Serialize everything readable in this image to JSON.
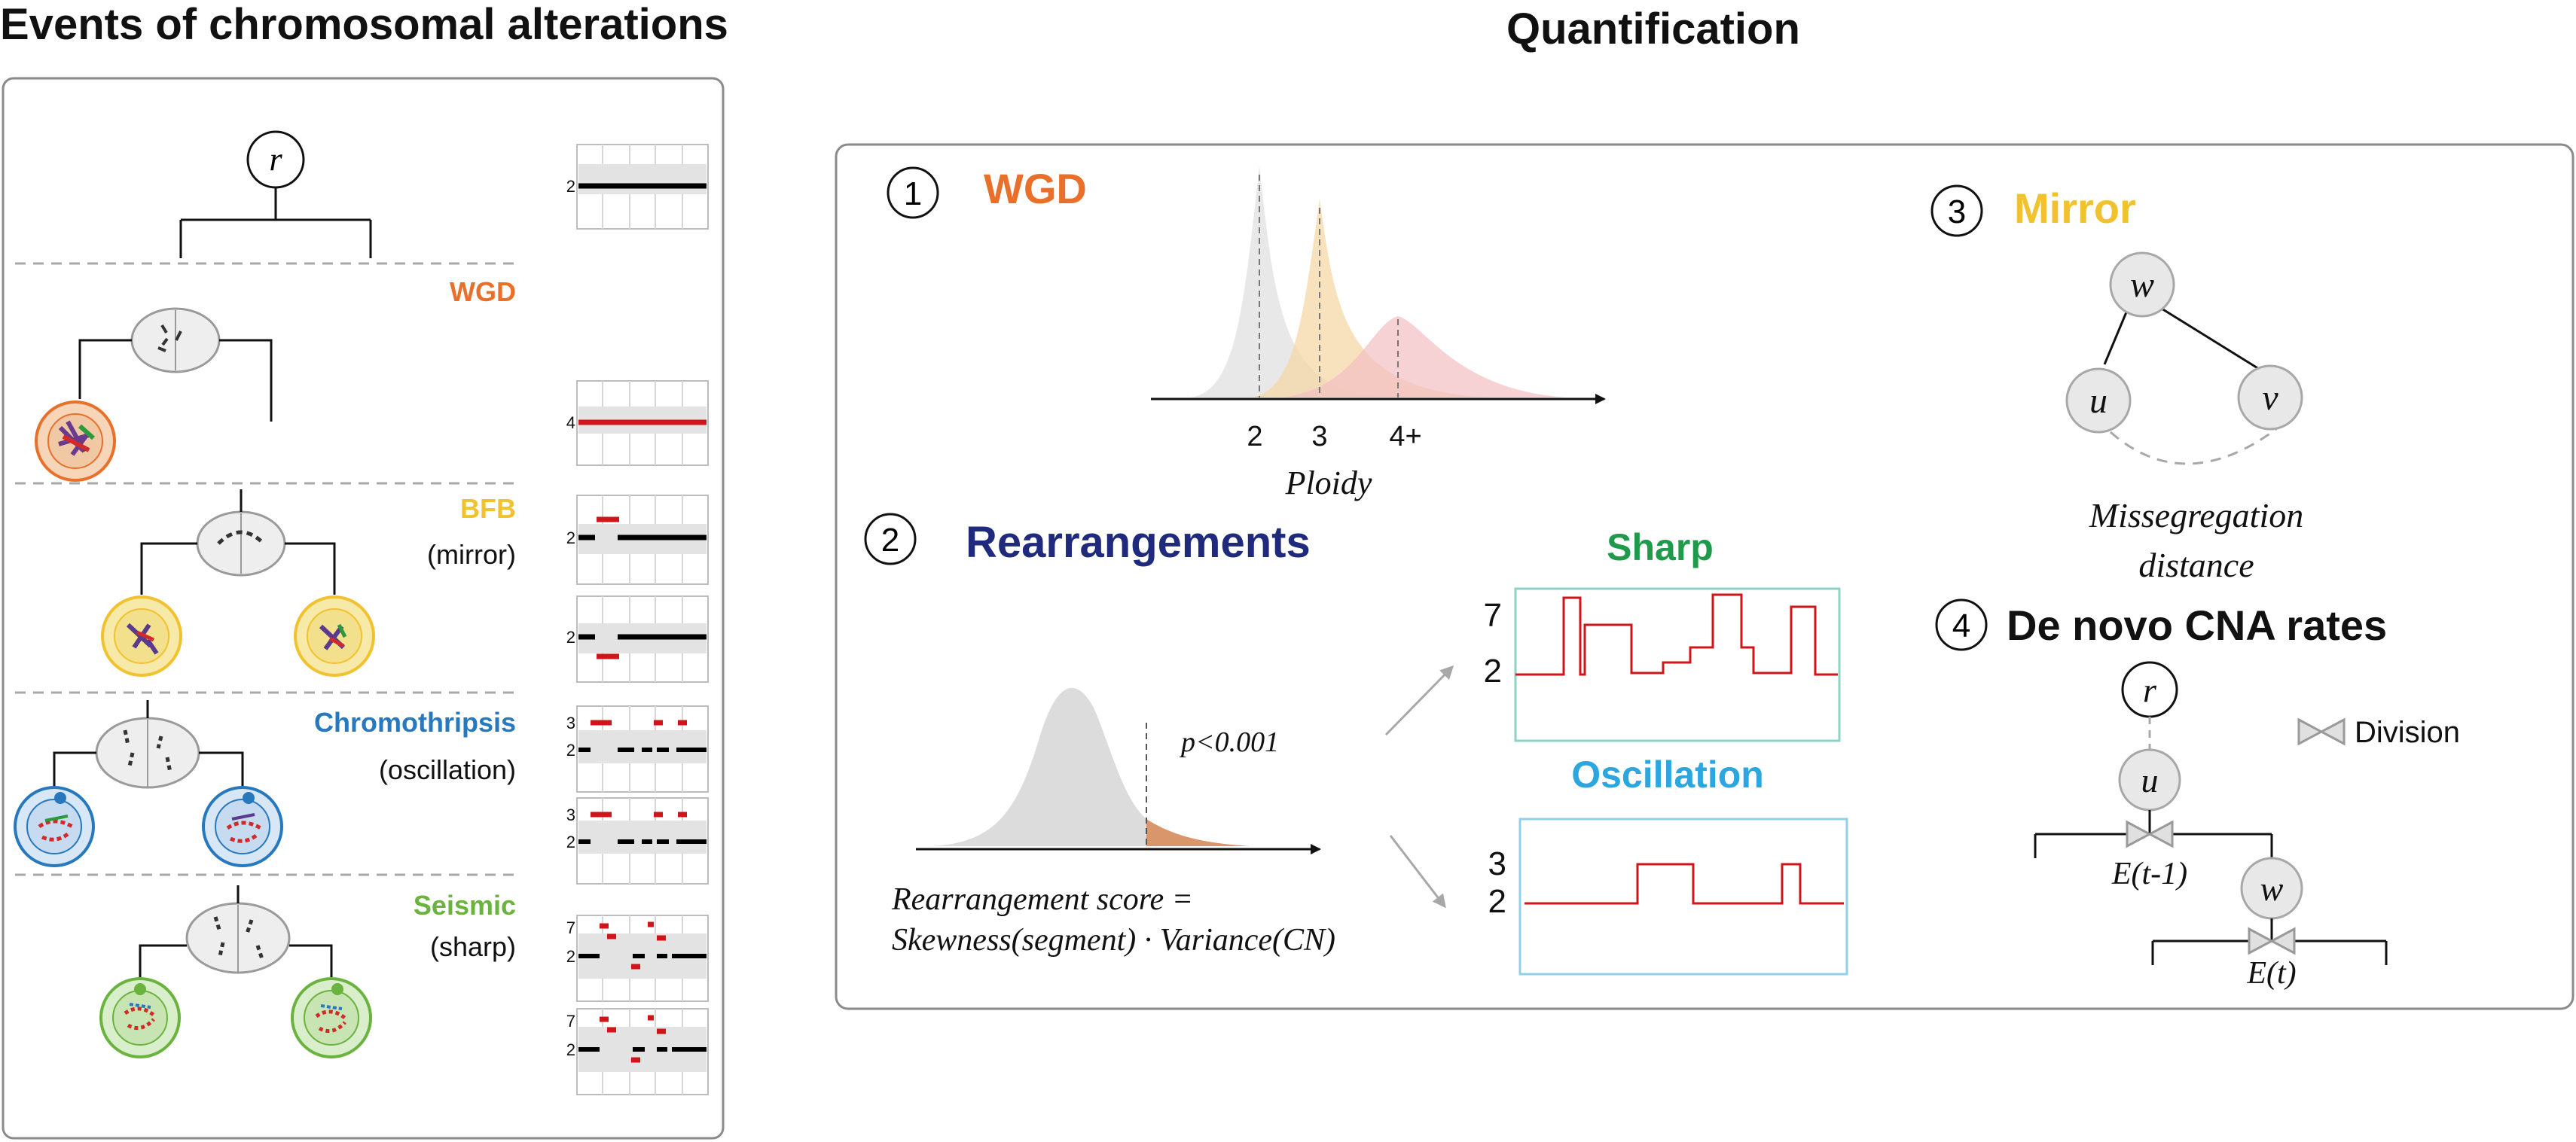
{
  "left": {
    "title": "Events of chromosomal alterations",
    "root_label": "r",
    "events": [
      {
        "name": "WGD",
        "color": "#e8702a"
      },
      {
        "name": "BFB",
        "sub": "(mirror)",
        "color": "#f2c12e"
      },
      {
        "name": "Chromothripsis",
        "sub": "(oscillation)",
        "color": "#2778bd"
      },
      {
        "name": "Seismic",
        "sub": "(sharp)",
        "color": "#6ab33e"
      }
    ],
    "cn_ticks": {
      "p1": "2",
      "p2": "4",
      "p3": "2",
      "p4": "2",
      "p5a": "3",
      "p5b": "2",
      "p6a": "3",
      "p6b": "2",
      "p7a": "7",
      "p7b": "2",
      "p8a": "7",
      "p8b": "2"
    }
  },
  "right": {
    "title": "Quantification",
    "wgd": {
      "num": "1",
      "label": "WGD",
      "color": "#e8702a",
      "ticks": [
        "2",
        "3",
        "4+"
      ],
      "xlabel": "Ploidy"
    },
    "mirror": {
      "num": "3",
      "label": "Mirror",
      "color": "#f2c12e",
      "nodes": [
        "w",
        "u",
        "v"
      ],
      "caption1": "Missegregation",
      "caption2": "distance"
    },
    "rearr": {
      "num": "2",
      "label": "Rearrangements",
      "color": "#1f2a7c",
      "pval": "p<0.001",
      "formula1": "Rearrangement score =",
      "formula2": "Skewness(segment) · Variance(CN)"
    },
    "sharp": {
      "label": "Sharp",
      "color": "#1f9a4a",
      "ticks": [
        "7",
        "2"
      ]
    },
    "osc": {
      "label": "Oscillation",
      "color": "#2ba6df",
      "ticks": [
        "3",
        "2"
      ]
    },
    "denovo": {
      "num": "4",
      "label": "De novo CNA rates",
      "nodes": [
        "r",
        "u",
        "w"
      ],
      "legend": "Division",
      "e1": "E(t-1)",
      "e2": "E(t)"
    }
  }
}
